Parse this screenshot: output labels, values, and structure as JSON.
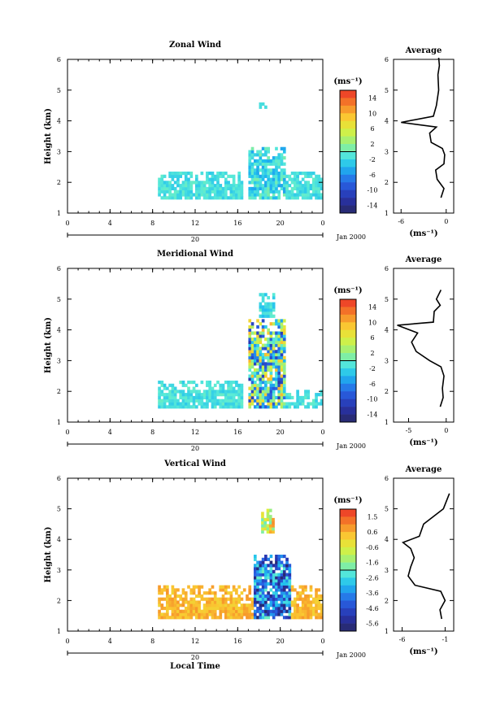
{
  "figure": {
    "x_label": "Local Time",
    "date_label": "Jan 2000",
    "day_label": "20",
    "cb_unit": "(ms⁻¹)",
    "avg_unit": "(ms⁻¹)",
    "avg_title": "Average",
    "y_label": "Height (km)"
  },
  "chart_data": [
    {
      "type": "heatmap",
      "title": "Zonal Wind",
      "ylabel": "Height (km)",
      "xlabel": "",
      "xlim": [
        0,
        24
      ],
      "ylim": [
        1,
        6
      ],
      "x_ticks": [
        "0",
        "4",
        "8",
        "12",
        "16",
        "20",
        "0"
      ],
      "y_ticks": [
        "1",
        "2",
        "3",
        "4",
        "5",
        "6"
      ],
      "colorbar": {
        "unit": "(ms⁻¹)",
        "ticks": [
          "14",
          "10",
          "6",
          "2",
          "-2",
          "-6",
          "-10",
          "-14"
        ],
        "range": [
          -16,
          16
        ]
      },
      "data_regions": [
        {
          "x": [
            8.5,
            16.5
          ],
          "y": [
            1.45,
            2.35
          ],
          "value_range": [
            -3,
            0
          ]
        },
        {
          "x": [
            17.0,
            20.5
          ],
          "y": [
            1.45,
            3.1
          ],
          "value_range": [
            -5,
            1
          ]
        },
        {
          "x": [
            20.5,
            24.0
          ],
          "y": [
            1.45,
            2.35
          ],
          "value_range": [
            -3,
            0
          ]
        },
        {
          "x": [
            18.0,
            18.6
          ],
          "y": [
            4.4,
            4.6
          ],
          "value_range": [
            -3,
            0
          ]
        }
      ],
      "average_profile": {
        "xlim": [
          -7,
          1
        ],
        "x_ticks": [
          "-6",
          "0"
        ],
        "y_ticks": [
          "1",
          "2",
          "3",
          "4",
          "5",
          "6"
        ],
        "points": [
          [
            -0.7,
            1.5
          ],
          [
            -0.3,
            1.8
          ],
          [
            -1.2,
            2.1
          ],
          [
            -1.4,
            2.4
          ],
          [
            -0.3,
            2.6
          ],
          [
            -0.2,
            2.9
          ],
          [
            -0.5,
            3.1
          ],
          [
            -2.0,
            3.3
          ],
          [
            -2.2,
            3.6
          ],
          [
            -1.3,
            3.8
          ],
          [
            -6.0,
            3.95
          ],
          [
            -1.7,
            4.15
          ],
          [
            -1.3,
            4.5
          ],
          [
            -1.0,
            5.0
          ],
          [
            -1.1,
            5.5
          ],
          [
            -0.9,
            5.8
          ],
          [
            -1.0,
            6.05
          ]
        ]
      }
    },
    {
      "type": "heatmap",
      "title": "Meridional Wind",
      "ylabel": "Height (km)",
      "xlabel": "",
      "xlim": [
        0,
        24
      ],
      "ylim": [
        1,
        6
      ],
      "x_ticks": [
        "0",
        "4",
        "8",
        "12",
        "16",
        "20",
        "0"
      ],
      "y_ticks": [
        "1",
        "2",
        "3",
        "4",
        "5",
        "6"
      ],
      "colorbar": {
        "unit": "(ms⁻¹)",
        "ticks": [
          "14",
          "10",
          "6",
          "2",
          "-2",
          "-6",
          "-10",
          "-14"
        ],
        "range": [
          -16,
          16
        ]
      },
      "data_regions": [
        {
          "x": [
            8.5,
            16.5
          ],
          "y": [
            1.45,
            2.35
          ],
          "value_range": [
            -3,
            0
          ]
        },
        {
          "x": [
            17.0,
            20.5
          ],
          "y": [
            1.45,
            4.3
          ],
          "value_range": [
            -12,
            10
          ]
        },
        {
          "x": [
            20.5,
            24.0
          ],
          "y": [
            1.45,
            2.0
          ],
          "value_range": [
            -3,
            0
          ]
        },
        {
          "x": [
            18.0,
            19.5
          ],
          "y": [
            4.4,
            5.2
          ],
          "value_range": [
            -4,
            0
          ]
        }
      ],
      "average_profile": {
        "xlim": [
          -7,
          1
        ],
        "x_ticks": [
          "-5",
          "0"
        ],
        "y_ticks": [
          "1",
          "2",
          "3",
          "4",
          "5",
          "6"
        ],
        "points": [
          [
            -0.8,
            1.5
          ],
          [
            -0.4,
            1.8
          ],
          [
            -0.5,
            2.1
          ],
          [
            -0.3,
            2.5
          ],
          [
            -0.7,
            2.8
          ],
          [
            -2.2,
            3.0
          ],
          [
            -4.0,
            3.3
          ],
          [
            -4.6,
            3.6
          ],
          [
            -3.8,
            3.9
          ],
          [
            -6.5,
            4.15
          ],
          [
            -1.7,
            4.25
          ],
          [
            -1.6,
            4.6
          ],
          [
            -0.8,
            4.8
          ],
          [
            -1.3,
            5.0
          ],
          [
            -0.7,
            5.3
          ]
        ]
      }
    },
    {
      "type": "heatmap",
      "title": "Vertical Wind",
      "ylabel": "Height (km)",
      "xlabel": "Local Time",
      "xlim": [
        0,
        24
      ],
      "ylim": [
        1,
        6
      ],
      "x_ticks": [
        "0",
        "4",
        "8",
        "12",
        "16",
        "20",
        "0"
      ],
      "y_ticks": [
        "1",
        "2",
        "3",
        "4",
        "5",
        "6"
      ],
      "colorbar": {
        "unit": "(ms⁻¹)",
        "ticks": [
          "1.5",
          "0.6",
          "-0.6",
          "-1.6",
          "-2.6",
          "-3.6",
          "-4.6",
          "-5.6"
        ],
        "range": [
          -6.1,
          2.0
        ]
      },
      "data_regions": [
        {
          "x": [
            8.5,
            17.5
          ],
          "y": [
            1.4,
            2.45
          ],
          "value_range": [
            0,
            0.8
          ]
        },
        {
          "x": [
            17.5,
            21.0
          ],
          "y": [
            1.4,
            3.5
          ],
          "value_range": [
            -6,
            -2
          ]
        },
        {
          "x": [
            21.0,
            24.0
          ],
          "y": [
            1.4,
            2.45
          ],
          "value_range": [
            0,
            0.8
          ]
        },
        {
          "x": [
            18.2,
            19.4
          ],
          "y": [
            4.2,
            5.0
          ],
          "value_range": [
            -2,
            1
          ]
        }
      ],
      "average_profile": {
        "xlim": [
          -7,
          0
        ],
        "x_ticks": [
          "-6",
          "-1"
        ],
        "y_ticks": [
          "1",
          "2",
          "3",
          "4",
          "5",
          "6"
        ],
        "points": [
          [
            -1.4,
            1.4
          ],
          [
            -1.6,
            1.7
          ],
          [
            -1.0,
            2.0
          ],
          [
            -1.5,
            2.3
          ],
          [
            -4.5,
            2.5
          ],
          [
            -5.3,
            2.8
          ],
          [
            -5.0,
            3.1
          ],
          [
            -4.6,
            3.4
          ],
          [
            -5.0,
            3.7
          ],
          [
            -5.9,
            3.9
          ],
          [
            -4.0,
            4.1
          ],
          [
            -3.5,
            4.5
          ],
          [
            -1.2,
            5.0
          ],
          [
            -0.5,
            5.5
          ]
        ]
      }
    }
  ]
}
